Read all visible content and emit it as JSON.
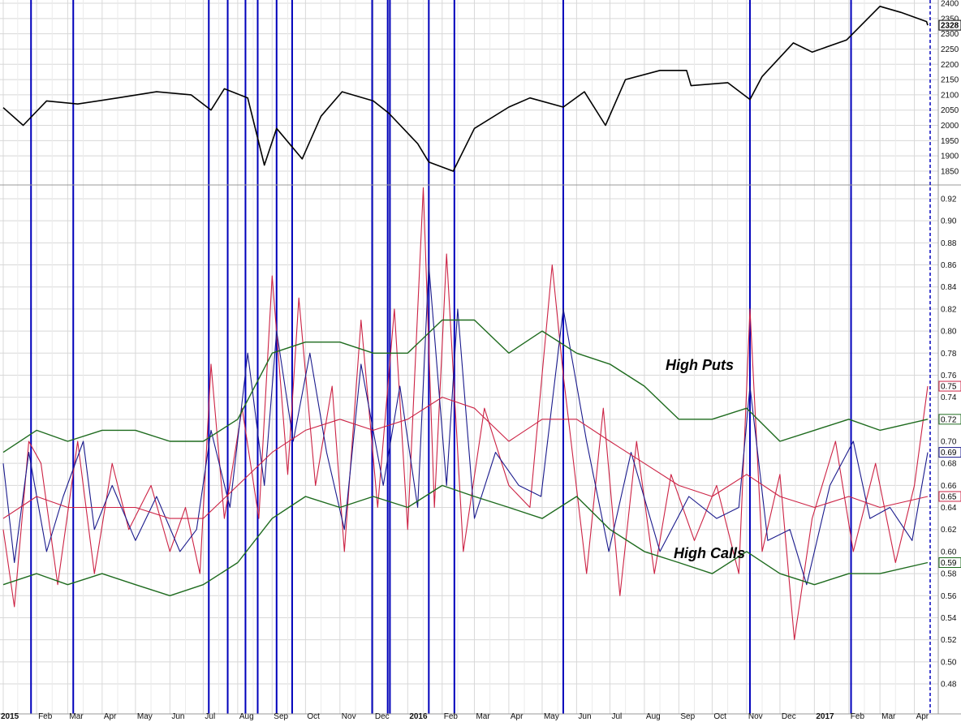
{
  "chart_data": [
    {
      "type": "line",
      "panel": "top",
      "title": "",
      "xlabel": "",
      "ylabel": "",
      "ylim": [
        1800,
        2400
      ],
      "grid": true,
      "y_ticks": [
        1850,
        1900,
        1950,
        2000,
        2050,
        2100,
        2150,
        2200,
        2250,
        2300,
        2350,
        2400
      ],
      "last_value": "2328",
      "series": [
        {
          "color": "#000000",
          "x": [
            "2015-01-02",
            "2015-01-20",
            "2015-02-10",
            "2015-03-10",
            "2015-04-15",
            "2015-05-20",
            "2015-06-20",
            "2015-07-08",
            "2015-07-20",
            "2015-08-10",
            "2015-08-25",
            "2015-09-05",
            "2015-09-28",
            "2015-10-15",
            "2015-11-03",
            "2015-12-01",
            "2015-12-15",
            "2016-01-10",
            "2016-01-20",
            "2016-02-11",
            "2016-03-01",
            "2016-04-01",
            "2016-04-20",
            "2016-05-20",
            "2016-06-08",
            "2016-06-27",
            "2016-07-15",
            "2016-08-15",
            "2016-09-08",
            "2016-09-12",
            "2016-10-15",
            "2016-11-04",
            "2016-11-15",
            "2016-12-13",
            "2016-12-30",
            "2017-01-30",
            "2017-03-01",
            "2017-03-20",
            "2017-04-12",
            "2017-04-13"
          ],
          "y": [
            2058,
            2000,
            2080,
            2070,
            2090,
            2110,
            2100,
            2050,
            2120,
            2090,
            1870,
            1990,
            1890,
            2030,
            2110,
            2080,
            2040,
            1940,
            1880,
            1850,
            1990,
            2060,
            2090,
            2060,
            2110,
            2000,
            2150,
            2180,
            2180,
            2130,
            2140,
            2085,
            2160,
            2270,
            2240,
            2280,
            2390,
            2370,
            2340,
            2328
          ]
        }
      ]
    },
    {
      "type": "line",
      "panel": "bottom",
      "title": "",
      "xlabel": "",
      "ylabel": "",
      "ylim": [
        0.46,
        0.94
      ],
      "grid": true,
      "y_ticks": [
        0.48,
        0.5,
        0.52,
        0.54,
        0.56,
        0.58,
        0.6,
        0.62,
        0.64,
        0.66,
        0.68,
        0.7,
        0.72,
        0.74,
        0.76,
        0.78,
        0.8,
        0.82,
        0.84,
        0.86,
        0.88,
        0.9,
        0.92
      ],
      "annotations": [
        "High Puts",
        "High Calls"
      ],
      "last_values": [
        "0.75",
        "0.72",
        "0.69",
        "0.65",
        "0.59"
      ],
      "series": [
        {
          "color": "#cc2244",
          "x": [
            "2015-01-02",
            "2015-01-12",
            "2015-01-25",
            "2015-02-05",
            "2015-02-20",
            "2015-03-10",
            "2015-03-25",
            "2015-04-10",
            "2015-04-25",
            "2015-05-15",
            "2015-06-01",
            "2015-06-15",
            "2015-06-28",
            "2015-07-08",
            "2015-07-20",
            "2015-08-05",
            "2015-08-20",
            "2015-09-01",
            "2015-09-15",
            "2015-09-25",
            "2015-10-10",
            "2015-10-25",
            "2015-11-05",
            "2015-11-20",
            "2015-12-05",
            "2015-12-20",
            "2016-01-01",
            "2016-01-15",
            "2016-01-25",
            "2016-02-05",
            "2016-02-20",
            "2016-03-10",
            "2016-04-01",
            "2016-04-20",
            "2016-05-10",
            "2016-05-20",
            "2016-06-10",
            "2016-06-25",
            "2016-07-10",
            "2016-07-25",
            "2016-08-10",
            "2016-08-25",
            "2016-09-15",
            "2016-10-05",
            "2016-10-25",
            "2016-11-04",
            "2016-11-15",
            "2016-12-01",
            "2016-12-14",
            "2016-12-30",
            "2017-01-20",
            "2017-02-05",
            "2017-02-25",
            "2017-03-15",
            "2017-04-01",
            "2017-04-13"
          ],
          "y": [
            0.62,
            0.55,
            0.7,
            0.68,
            0.57,
            0.7,
            0.58,
            0.68,
            0.62,
            0.66,
            0.6,
            0.64,
            0.58,
            0.77,
            0.63,
            0.73,
            0.63,
            0.85,
            0.67,
            0.83,
            0.66,
            0.75,
            0.6,
            0.81,
            0.64,
            0.82,
            0.62,
            0.93,
            0.64,
            0.87,
            0.6,
            0.73,
            0.66,
            0.64,
            0.86,
            0.76,
            0.58,
            0.73,
            0.56,
            0.7,
            0.58,
            0.67,
            0.61,
            0.66,
            0.58,
            0.82,
            0.6,
            0.67,
            0.52,
            0.63,
            0.7,
            0.6,
            0.68,
            0.59,
            0.66,
            0.75
          ]
        },
        {
          "color": "#1a1a8c",
          "x": [
            "2015-01-02",
            "2015-01-12",
            "2015-01-25",
            "2015-02-10",
            "2015-02-25",
            "2015-03-15",
            "2015-03-25",
            "2015-04-10",
            "2015-05-01",
            "2015-05-20",
            "2015-06-10",
            "2015-06-25",
            "2015-07-08",
            "2015-07-25",
            "2015-08-10",
            "2015-08-25",
            "2015-09-05",
            "2015-09-20",
            "2015-10-05",
            "2015-10-20",
            "2015-11-05",
            "2015-11-20",
            "2015-12-10",
            "2015-12-25",
            "2016-01-10",
            "2016-01-20",
            "2016-02-05",
            "2016-02-15",
            "2016-03-01",
            "2016-03-20",
            "2016-04-10",
            "2016-04-30",
            "2016-05-20",
            "2016-06-10",
            "2016-06-30",
            "2016-07-20",
            "2016-08-15",
            "2016-09-10",
            "2016-10-05",
            "2016-10-25",
            "2016-11-04",
            "2016-11-20",
            "2016-12-10",
            "2016-12-25",
            "2017-01-15",
            "2017-02-05",
            "2017-02-20",
            "2017-03-10",
            "2017-03-30",
            "2017-04-13"
          ],
          "y": [
            0.68,
            0.59,
            0.69,
            0.6,
            0.65,
            0.7,
            0.62,
            0.66,
            0.61,
            0.65,
            0.6,
            0.62,
            0.71,
            0.64,
            0.78,
            0.66,
            0.8,
            0.7,
            0.78,
            0.69,
            0.62,
            0.77,
            0.66,
            0.75,
            0.64,
            0.86,
            0.66,
            0.82,
            0.63,
            0.69,
            0.66,
            0.65,
            0.82,
            0.7,
            0.6,
            0.69,
            0.6,
            0.65,
            0.63,
            0.64,
            0.75,
            0.61,
            0.62,
            0.57,
            0.66,
            0.7,
            0.63,
            0.64,
            0.61,
            0.69
          ]
        },
        {
          "color": "#cc2244",
          "x": [
            "2015-01-02",
            "2015-02-01",
            "2015-03-01",
            "2015-04-01",
            "2015-05-01",
            "2015-06-01",
            "2015-07-01",
            "2015-08-01",
            "2015-09-01",
            "2015-10-01",
            "2015-11-01",
            "2015-12-01",
            "2016-01-01",
            "2016-02-01",
            "2016-03-01",
            "2016-04-01",
            "2016-05-01",
            "2016-06-01",
            "2016-07-01",
            "2016-08-01",
            "2016-09-01",
            "2016-10-01",
            "2016-11-01",
            "2016-12-01",
            "2017-01-01",
            "2017-02-01",
            "2017-03-01",
            "2017-04-13"
          ],
          "y": [
            0.63,
            0.65,
            0.64,
            0.64,
            0.64,
            0.63,
            0.63,
            0.66,
            0.69,
            0.71,
            0.72,
            0.71,
            0.72,
            0.74,
            0.73,
            0.7,
            0.72,
            0.72,
            0.7,
            0.68,
            0.66,
            0.65,
            0.67,
            0.65,
            0.64,
            0.65,
            0.64,
            0.65
          ]
        },
        {
          "color": "#1e6b1e",
          "x": [
            "2015-01-02",
            "2015-02-01",
            "2015-03-01",
            "2015-04-01",
            "2015-05-01",
            "2015-06-01",
            "2015-07-01",
            "2015-08-01",
            "2015-09-01",
            "2015-10-01",
            "2015-11-01",
            "2015-12-01",
            "2016-01-01",
            "2016-02-01",
            "2016-03-01",
            "2016-04-01",
            "2016-05-01",
            "2016-06-01",
            "2016-07-01",
            "2016-08-01",
            "2016-09-01",
            "2016-10-01",
            "2016-11-01",
            "2016-12-01",
            "2017-01-01",
            "2017-02-01",
            "2017-03-01",
            "2017-04-13"
          ],
          "y": [
            0.69,
            0.71,
            0.7,
            0.71,
            0.71,
            0.7,
            0.7,
            0.72,
            0.78,
            0.79,
            0.79,
            0.78,
            0.78,
            0.81,
            0.81,
            0.78,
            0.8,
            0.78,
            0.77,
            0.75,
            0.72,
            0.72,
            0.73,
            0.7,
            0.71,
            0.72,
            0.71,
            0.72
          ]
        },
        {
          "color": "#1e6b1e",
          "x": [
            "2015-01-02",
            "2015-02-01",
            "2015-03-01",
            "2015-04-01",
            "2015-05-01",
            "2015-06-01",
            "2015-07-01",
            "2015-08-01",
            "2015-09-01",
            "2015-10-01",
            "2015-11-01",
            "2015-12-01",
            "2016-01-01",
            "2016-02-01",
            "2016-03-01",
            "2016-04-01",
            "2016-05-01",
            "2016-06-01",
            "2016-07-01",
            "2016-08-01",
            "2016-09-01",
            "2016-10-01",
            "2016-11-01",
            "2016-12-01",
            "2017-01-01",
            "2017-02-01",
            "2017-03-01",
            "2017-04-13"
          ],
          "y": [
            0.57,
            0.58,
            0.57,
            0.58,
            0.57,
            0.56,
            0.57,
            0.59,
            0.63,
            0.65,
            0.64,
            0.65,
            0.64,
            0.66,
            0.65,
            0.64,
            0.63,
            0.65,
            0.62,
            0.6,
            0.59,
            0.58,
            0.6,
            0.58,
            0.57,
            0.58,
            0.58,
            0.59
          ]
        }
      ]
    }
  ],
  "x_axis": {
    "ticks": [
      "2015",
      "Feb",
      "Mar",
      "Apr",
      "May",
      "Jun",
      "Jul",
      "Aug",
      "Sep",
      "Oct",
      "Nov",
      "Dec",
      "2016",
      "Feb",
      "Mar",
      "Apr",
      "May",
      "Jun",
      "Jul",
      "Aug",
      "Sep",
      "Oct",
      "Nov",
      "Dec",
      "2017",
      "Feb",
      "Mar",
      "Apr"
    ],
    "bold_ticks": [
      "2015",
      "2016",
      "2017"
    ]
  },
  "signal_lines": {
    "color": "#0000bb",
    "dates": [
      "2015-01-27",
      "2015-03-06",
      "2015-07-06",
      "2015-07-23",
      "2015-08-08",
      "2015-08-19",
      "2015-09-05",
      "2015-09-19",
      "2015-11-30",
      "2015-12-14",
      "2015-12-16",
      "2016-01-20",
      "2016-02-12",
      "2016-05-20",
      "2016-11-04",
      "2017-02-03"
    ]
  },
  "colors": {
    "price": "#000000",
    "ratio": "#cc2244",
    "smooth": "#1a1a8c",
    "band": "#1e6b1e",
    "signal": "#0000bb",
    "grid": "#d8d8d8"
  }
}
